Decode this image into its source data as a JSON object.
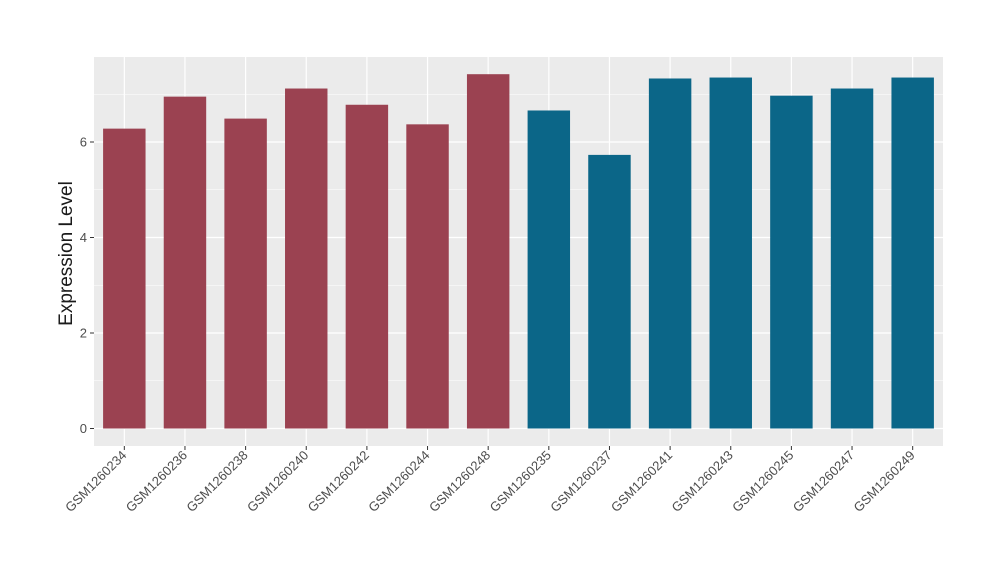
{
  "chart_data": {
    "type": "bar",
    "title": "",
    "xlabel": "",
    "ylabel": "Expression Level",
    "ylim": [
      0,
      7.75
    ],
    "yticks": [
      0,
      2,
      4,
      6
    ],
    "grid": true,
    "legend": "none",
    "categories": [
      "GSM1260234",
      "GSM1260236",
      "GSM1260238",
      "GSM1260240",
      "GSM1260242",
      "GSM1260244",
      "GSM1260248",
      "GSM1260235",
      "GSM1260237",
      "GSM1260241",
      "GSM1260243",
      "GSM1260245",
      "GSM1260247",
      "GSM1260249"
    ],
    "values": [
      6.28,
      6.95,
      6.49,
      7.12,
      6.78,
      6.37,
      7.42,
      6.66,
      5.73,
      7.33,
      7.35,
      6.97,
      7.12,
      7.35
    ],
    "bar_colors": [
      "#9b4251",
      "#9b4251",
      "#9b4251",
      "#9b4251",
      "#9b4251",
      "#9b4251",
      "#9b4251",
      "#0b6688",
      "#0b6688",
      "#0b6688",
      "#0b6688",
      "#0b6688",
      "#0b6688",
      "#0b6688"
    ],
    "colors": {
      "panel_background": "#ebebeb",
      "grid": "#ffffff",
      "group_a": "#9b4251",
      "group_b": "#0b6688"
    }
  }
}
